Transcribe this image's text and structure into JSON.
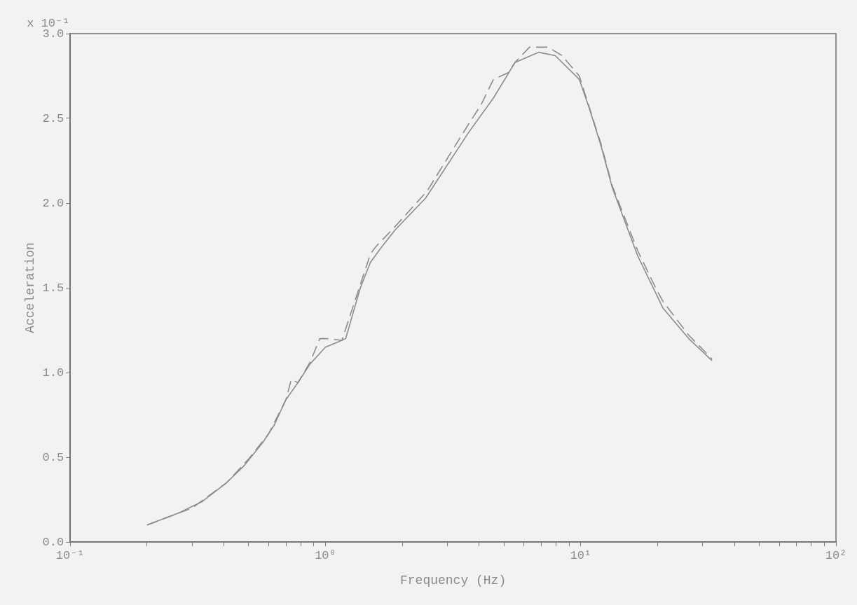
{
  "chart_data": {
    "type": "line",
    "xlabel": "Frequency (Hz)",
    "ylabel": "Acceleration",
    "annotations": [
      "x 10⁻¹"
    ],
    "log": "x",
    "grid": false,
    "legend": false,
    "marker": "none",
    "xlim": [
      0.1,
      100
    ],
    "ylim": [
      0,
      3.0
    ],
    "xticks": [
      {
        "value": 0.1,
        "label": "10⁻¹"
      },
      {
        "value": 0.2,
        "label": null
      },
      {
        "value": 0.3,
        "label": null
      },
      {
        "value": 0.4,
        "label": null
      },
      {
        "value": 0.5,
        "label": null
      },
      {
        "value": 0.6,
        "label": null
      },
      {
        "value": 0.7,
        "label": null
      },
      {
        "value": 0.8,
        "label": null
      },
      {
        "value": 0.9,
        "label": null
      },
      {
        "value": 1,
        "label": "10⁰"
      },
      {
        "value": 2,
        "label": null
      },
      {
        "value": 3,
        "label": null
      },
      {
        "value": 4,
        "label": null
      },
      {
        "value": 5,
        "label": null
      },
      {
        "value": 6,
        "label": null
      },
      {
        "value": 7,
        "label": null
      },
      {
        "value": 8,
        "label": null
      },
      {
        "value": 9,
        "label": null
      },
      {
        "value": 10,
        "label": "10¹"
      },
      {
        "value": 20,
        "label": null
      },
      {
        "value": 30,
        "label": null
      },
      {
        "value": 40,
        "label": null
      },
      {
        "value": 50,
        "label": null
      },
      {
        "value": 60,
        "label": null
      },
      {
        "value": 70,
        "label": null
      },
      {
        "value": 80,
        "label": null
      },
      {
        "value": 90,
        "label": null
      },
      {
        "value": 100,
        "label": "10²"
      }
    ],
    "yticks": [
      {
        "value": 0,
        "label": "0.0"
      },
      {
        "value": 0.5,
        "label": "0.5"
      },
      {
        "value": 1,
        "label": "1.0"
      },
      {
        "value": 1.5,
        "label": "1.5"
      },
      {
        "value": 2,
        "label": "2.0"
      },
      {
        "value": 2.5,
        "label": "2.5"
      },
      {
        "value": 3,
        "label": "3.0"
      }
    ],
    "series": [
      {
        "color": "#8c8c8c",
        "line_style": "solid",
        "x": [
          0.2,
          0.265,
          0.33,
          0.41,
          0.48,
          0.57,
          0.63,
          0.7,
          0.78,
          0.87,
          1.0,
          1.16,
          1.2,
          1.37,
          1.5,
          1.64,
          1.87,
          2.47,
          3.65,
          4.55,
          5.53,
          6.85,
          7.95,
          9.87,
          10.8,
          12.0,
          13.3,
          16.7,
          19.8,
          21,
          26.5,
          32.7
        ],
        "values": [
          0.1,
          0.17,
          0.24,
          0.35,
          0.45,
          0.59,
          0.69,
          0.84,
          0.94,
          1.05,
          1.15,
          1.19,
          1.2,
          1.5,
          1.65,
          1.73,
          1.84,
          2.03,
          2.42,
          2.62,
          2.83,
          2.89,
          2.87,
          2.73,
          2.56,
          2.34,
          2.09,
          1.69,
          1.46,
          1.38,
          1.2,
          1.07
        ]
      },
      {
        "color": "#8c8c8c",
        "line_style": "dashed",
        "x": [
          0.2,
          0.3,
          0.41,
          0.5,
          0.6,
          0.7,
          0.735,
          0.78,
          0.87,
          0.95,
          1.02,
          1.16,
          1.37,
          1.5,
          1.57,
          1.87,
          2.5,
          3.65,
          4.07,
          4.55,
          5.2,
          5.53,
          6.3,
          7.45,
          8.45,
          9.87,
          12.0,
          13.3,
          16.7,
          19.8,
          21,
          26.5,
          32.7
        ],
        "values": [
          0.1,
          0.2,
          0.35,
          0.49,
          0.64,
          0.84,
          0.96,
          0.94,
          1.06,
          1.2,
          1.2,
          1.19,
          1.52,
          1.7,
          1.74,
          1.86,
          2.07,
          2.47,
          2.58,
          2.73,
          2.77,
          2.83,
          2.92,
          2.92,
          2.87,
          2.75,
          2.35,
          2.1,
          1.72,
          1.49,
          1.42,
          1.22,
          1.08
        ]
      }
    ]
  }
}
